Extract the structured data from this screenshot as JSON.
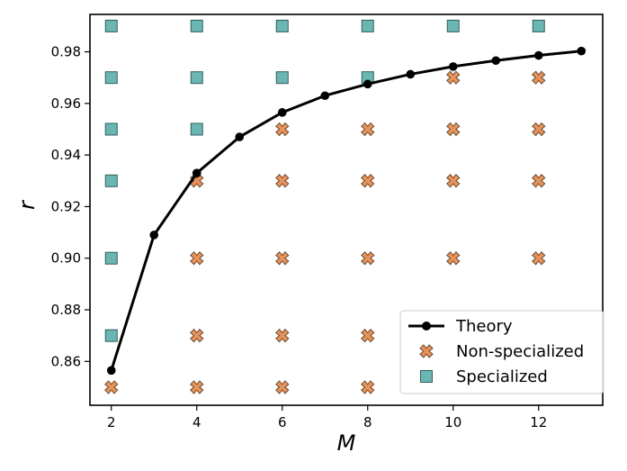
{
  "chart_data": {
    "type": "scatter",
    "xlabel": "M",
    "ylabel": "r",
    "xlim": [
      1.5,
      13.5
    ],
    "ylim": [
      0.843,
      0.9945
    ],
    "x_ticks": [
      2,
      4,
      6,
      8,
      10,
      12
    ],
    "y_ticks": [
      0.86,
      0.88,
      0.9,
      0.92,
      0.94,
      0.96,
      0.98
    ],
    "y_tick_labels": [
      "0.86",
      "0.88",
      "0.90",
      "0.92",
      "0.94",
      "0.96",
      "0.98"
    ],
    "grid": false,
    "legend_position": "bottom-right",
    "series": [
      {
        "name": "Theory",
        "kind": "line",
        "color": "#000000",
        "points": [
          [
            2,
            0.8565
          ],
          [
            3,
            0.909
          ],
          [
            4,
            0.933
          ],
          [
            5,
            0.947
          ],
          [
            6,
            0.9565
          ],
          [
            7,
            0.963
          ],
          [
            8,
            0.9675
          ],
          [
            9,
            0.9713
          ],
          [
            10,
            0.9743
          ],
          [
            11,
            0.9766
          ],
          [
            12,
            0.9786
          ],
          [
            13,
            0.9803
          ]
        ]
      },
      {
        "name": "Non-specialized",
        "kind": "x-marker",
        "color": "#e8935a",
        "points": [
          [
            2,
            0.85
          ],
          [
            4,
            0.85
          ],
          [
            4,
            0.87
          ],
          [
            4,
            0.9
          ],
          [
            4,
            0.93
          ],
          [
            6,
            0.85
          ],
          [
            6,
            0.87
          ],
          [
            6,
            0.9
          ],
          [
            6,
            0.93
          ],
          [
            6,
            0.95
          ],
          [
            8,
            0.85
          ],
          [
            8,
            0.87
          ],
          [
            8,
            0.9
          ],
          [
            8,
            0.93
          ],
          [
            8,
            0.95
          ],
          [
            10,
            0.9
          ],
          [
            10,
            0.93
          ],
          [
            10,
            0.95
          ],
          [
            10,
            0.97
          ],
          [
            12,
            0.9
          ],
          [
            12,
            0.93
          ],
          [
            12,
            0.95
          ],
          [
            12,
            0.97
          ]
        ]
      },
      {
        "name": "Specialized",
        "kind": "square-marker",
        "color": "#6bb5b3",
        "points": [
          [
            2,
            0.87
          ],
          [
            2,
            0.9
          ],
          [
            2,
            0.93
          ],
          [
            2,
            0.95
          ],
          [
            2,
            0.97
          ],
          [
            2,
            0.99
          ],
          [
            4,
            0.95
          ],
          [
            4,
            0.97
          ],
          [
            4,
            0.99
          ],
          [
            6,
            0.97
          ],
          [
            6,
            0.99
          ],
          [
            8,
            0.97
          ],
          [
            8,
            0.99
          ],
          [
            10,
            0.99
          ],
          [
            12,
            0.99
          ]
        ]
      }
    ]
  }
}
